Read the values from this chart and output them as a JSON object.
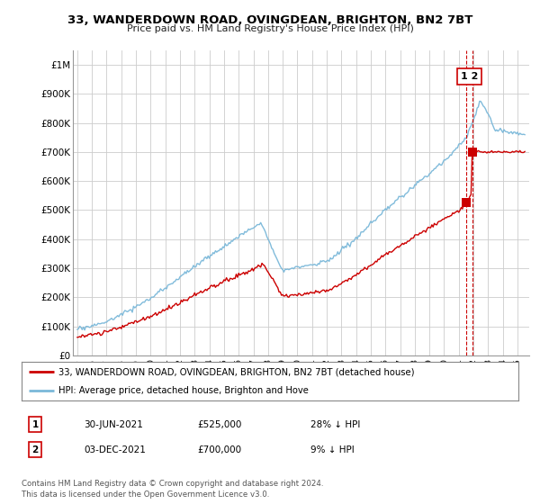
{
  "title": "33, WANDERDOWN ROAD, OVINGDEAN, BRIGHTON, BN2 7BT",
  "subtitle": "Price paid vs. HM Land Registry's House Price Index (HPI)",
  "hpi_color": "#7ab8d9",
  "price_color": "#cc0000",
  "dashed_color": "#cc0000",
  "ylim": [
    0,
    1050000
  ],
  "yticks": [
    0,
    100000,
    200000,
    300000,
    400000,
    500000,
    600000,
    700000,
    800000,
    900000,
    1000000
  ],
  "ytick_labels": [
    "£0",
    "£100K",
    "£200K",
    "£300K",
    "£400K",
    "£500K",
    "£600K",
    "£700K",
    "£800K",
    "£900K",
    "£1M"
  ],
  "xlim_start": 1994.7,
  "xlim_end": 2025.8,
  "t1_x": 2021.49,
  "t1_y": 525000,
  "t2_x": 2021.92,
  "t2_y": 700000,
  "legend_label_price": "33, WANDERDOWN ROAD, OVINGDEAN, BRIGHTON, BN2 7BT (detached house)",
  "legend_label_hpi": "HPI: Average price, detached house, Brighton and Hove",
  "table_rows": [
    {
      "num": "1",
      "date": "30-JUN-2021",
      "price": "£525,000",
      "pct": "28% ↓ HPI"
    },
    {
      "num": "2",
      "date": "03-DEC-2021",
      "price": "£700,000",
      "pct": "9% ↓ HPI"
    }
  ],
  "footer": "Contains HM Land Registry data © Crown copyright and database right 2024.\nThis data is licensed under the Open Government Licence v3.0.",
  "background_color": "#ffffff",
  "grid_color": "#cccccc"
}
